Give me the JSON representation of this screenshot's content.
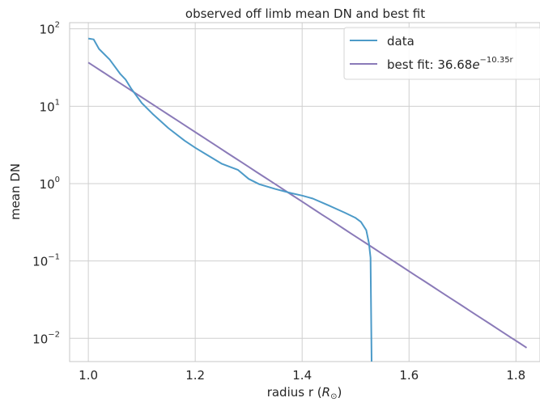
{
  "chart_data": {
    "type": "line",
    "title": "observed off limb mean DN and best fit",
    "xlabel": "radius r (R⊙)",
    "ylabel": "mean DN",
    "xlim": [
      0.965,
      1.845
    ],
    "ylim_log10": [
      -2.3,
      2.08
    ],
    "yscale": "log",
    "grid": true,
    "legend_position": "top-right",
    "x_ticks": [
      1.0,
      1.2,
      1.4,
      1.6,
      1.8
    ],
    "x_tick_labels": [
      "1.0",
      "1.2",
      "1.4",
      "1.6",
      "1.8"
    ],
    "y_ticks_log10": [
      2,
      1,
      0,
      -1,
      -2
    ],
    "series": [
      {
        "name": "data",
        "color": "#4c9ac8",
        "x": [
          1.0,
          1.01,
          1.02,
          1.04,
          1.06,
          1.07,
          1.08,
          1.1,
          1.12,
          1.15,
          1.18,
          1.2,
          1.25,
          1.28,
          1.3,
          1.32,
          1.35,
          1.38,
          1.4,
          1.42,
          1.45,
          1.48,
          1.5,
          1.51,
          1.52,
          1.525,
          1.528,
          1.53
        ],
        "y": [
          75,
          73,
          55,
          40,
          26,
          22,
          17,
          11,
          8,
          5.2,
          3.6,
          2.9,
          1.8,
          1.5,
          1.15,
          0.98,
          0.85,
          0.75,
          0.7,
          0.64,
          0.52,
          0.42,
          0.36,
          0.32,
          0.25,
          0.17,
          0.11,
          0.005
        ]
      },
      {
        "name": "best fit: 36.68e^{-10.35r}",
        "color": "#8a7ab8",
        "amplitude": 36.68,
        "rate": -10.35,
        "x_start": 1.0,
        "x_end": 1.82
      }
    ]
  },
  "legend": {
    "data_label": "data",
    "fit_label_prefix": "best fit: 36.68",
    "fit_label_var": "e",
    "fit_label_exponent": "−10.35r"
  },
  "axes": {
    "xlabel_main": "radius r (",
    "xlabel_var": "R",
    "xlabel_sub": "⊙",
    "xlabel_close": ")",
    "y_tick_base": "10",
    "y_tick_exponents": [
      "2",
      "1",
      "0",
      "−1",
      "−2"
    ]
  }
}
